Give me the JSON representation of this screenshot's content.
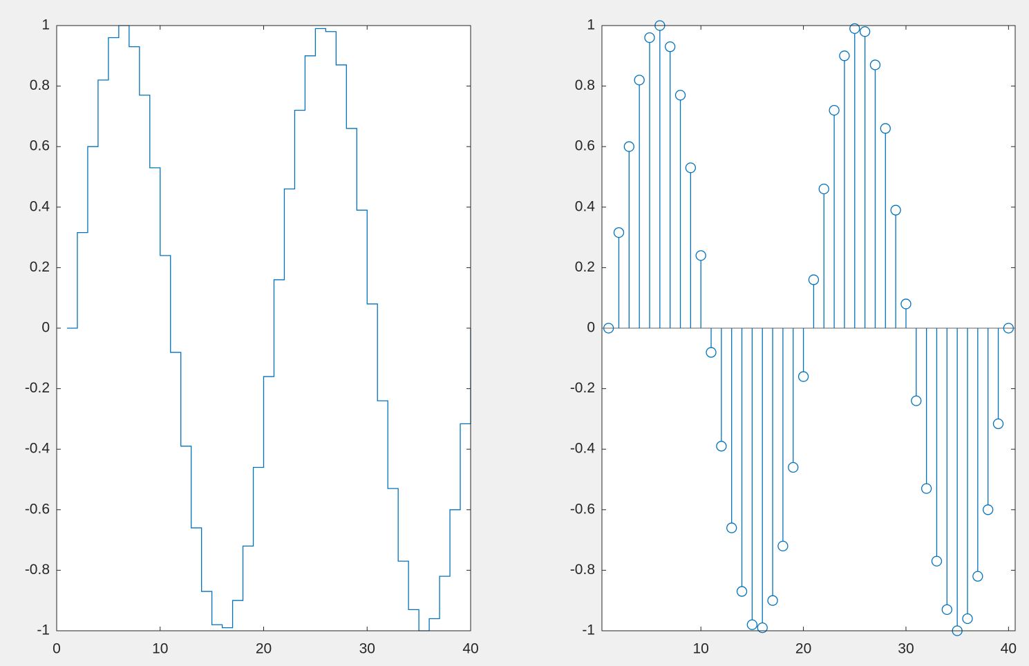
{
  "chart_data": [
    {
      "type": "stairs",
      "color": "#0072bd",
      "x": [
        1,
        2,
        3,
        4,
        5,
        6,
        7,
        8,
        9,
        10,
        11,
        12,
        13,
        14,
        15,
        16,
        17,
        18,
        19,
        20,
        21,
        22,
        23,
        24,
        25,
        26,
        27,
        28,
        29,
        30,
        31,
        32,
        33,
        34,
        35,
        36,
        37,
        38,
        39,
        40
      ],
      "values": [
        0,
        0.316,
        0.6,
        0.82,
        0.96,
        1.0,
        0.93,
        0.77,
        0.53,
        0.24,
        -0.08,
        -0.39,
        -0.66,
        -0.87,
        -0.98,
        -0.99,
        -0.9,
        -0.72,
        -0.46,
        -0.16,
        0.16,
        0.46,
        0.72,
        0.9,
        0.99,
        0.98,
        0.87,
        0.66,
        0.39,
        0.08,
        -0.24,
        -0.53,
        -0.77,
        -0.93,
        -1.0,
        -0.96,
        -0.82,
        -0.6,
        -0.316,
        0
      ],
      "xlim": [
        0,
        40
      ],
      "ylim": [
        -1,
        1
      ],
      "xticks": [
        0,
        10,
        20,
        30,
        40
      ],
      "yticks": [
        -1,
        -0.8,
        -0.6,
        -0.4,
        -0.2,
        0,
        0.2,
        0.4,
        0.6,
        0.8,
        1
      ]
    },
    {
      "type": "stem",
      "color": "#0072bd",
      "x": [
        1,
        2,
        3,
        4,
        5,
        6,
        7,
        8,
        9,
        10,
        11,
        12,
        13,
        14,
        15,
        16,
        17,
        18,
        19,
        20,
        21,
        22,
        23,
        24,
        25,
        26,
        27,
        28,
        29,
        30,
        31,
        32,
        33,
        34,
        35,
        36,
        37,
        38,
        39,
        40
      ],
      "values": [
        0,
        0.316,
        0.6,
        0.82,
        0.96,
        1.0,
        0.93,
        0.77,
        0.53,
        0.24,
        -0.08,
        -0.39,
        -0.66,
        -0.87,
        -0.98,
        -0.99,
        -0.9,
        -0.72,
        -0.46,
        -0.16,
        0.16,
        0.46,
        0.72,
        0.9,
        0.99,
        0.98,
        0.87,
        0.66,
        0.39,
        0.08,
        -0.24,
        -0.53,
        -0.77,
        -0.93,
        -1.0,
        -0.96,
        -0.82,
        -0.6,
        -0.316,
        0
      ],
      "xlim": [
        0.35,
        40.65
      ],
      "ylim": [
        -1,
        1
      ],
      "xticks": [
        10,
        20,
        30,
        40
      ],
      "yticks": [
        -1,
        -0.8,
        -0.6,
        -0.4,
        -0.2,
        0,
        0.2,
        0.4,
        0.6,
        0.8,
        1
      ]
    }
  ]
}
